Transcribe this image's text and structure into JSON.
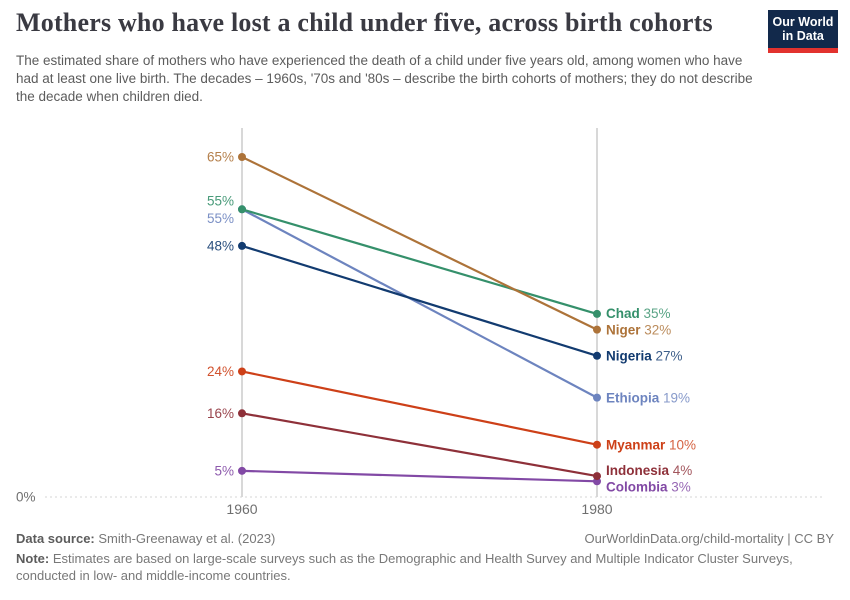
{
  "header": {
    "title": "Mothers who have lost a child under five, across birth cohorts",
    "subtitle": "The estimated share of mothers who have experienced the death of a child under five years old, among women who have had at least one live birth. The decades – 1960s, '70s and '80s – describe the birth cohorts of mothers; they do not describe the decade when children died.",
    "logo_line1": "Our World",
    "logo_line2": "in Data",
    "logo_bg": "#12294B",
    "logo_accent": "#E2322E"
  },
  "chart_data": {
    "type": "line",
    "subtype": "slope-chart",
    "x_tick_labels": [
      "1960",
      "1980"
    ],
    "y_zero_label": "0%",
    "value_suffix": "%",
    "ylim": [
      0,
      70
    ],
    "grid": "zero-line-dashed-only",
    "legend": "direct-labels",
    "axis_color": "#c8c8c8",
    "grid_color": "#d4d4d4",
    "tick_color": "#6f6f6f",
    "series": [
      {
        "name": "Ethiopia",
        "values": [
          55,
          19
        ],
        "color": "#6D84BF"
      },
      {
        "name": "Colombia",
        "values": [
          5,
          3
        ],
        "color": "#8249A5"
      },
      {
        "name": "Indonesia",
        "values": [
          16,
          4
        ],
        "color": "#8E3039"
      },
      {
        "name": "Myanmar",
        "values": [
          24,
          10
        ],
        "color": "#CD4018"
      },
      {
        "name": "Nigeria",
        "values": [
          48,
          27
        ],
        "color": "#123B70"
      },
      {
        "name": "Chad",
        "values": [
          55,
          35
        ],
        "color": "#35906B"
      },
      {
        "name": "Niger",
        "values": [
          65,
          32
        ],
        "color": "#AD7339"
      }
    ]
  },
  "footer": {
    "data_source_label": "Data source:",
    "data_source_value": " Smith-Greenaway et al. (2023)",
    "attribution": "OurWorldinData.org/child-mortality | CC BY",
    "note_label": "Note:",
    "note_value": " Estimates are based on large-scale surveys such as the Demographic and Health Survey and Multiple Indicator Cluster Surveys, conducted in low- and middle-income countries."
  }
}
